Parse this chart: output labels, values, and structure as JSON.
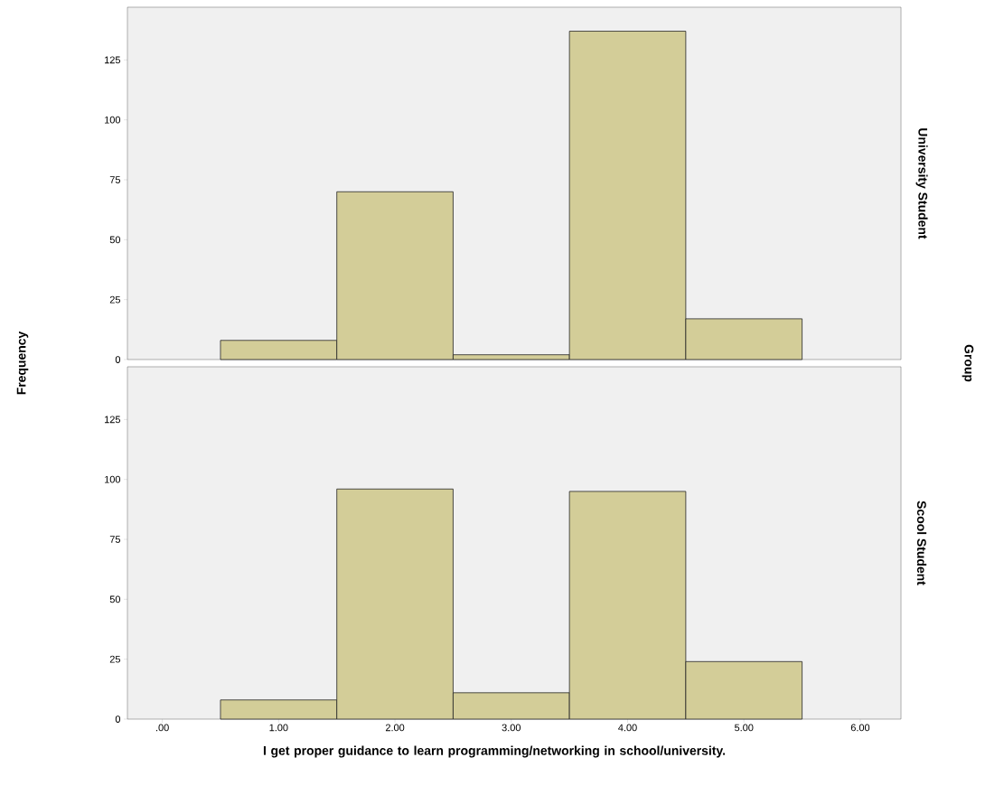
{
  "chart_data": [
    {
      "type": "histogram",
      "ylabel": "Frequency",
      "y2label": "University Student",
      "annotations": [
        "Group"
      ],
      "bins": [
        0.5,
        1.5,
        2.5,
        3.5,
        4.5,
        5.5
      ],
      "values": [
        8,
        70,
        2,
        137,
        17
      ],
      "color": "#d3cd98",
      "xlim": [
        -0.3,
        6.35
      ],
      "ylim": [
        0,
        147
      ],
      "yticks": [
        0,
        25,
        50,
        75,
        100,
        125
      ],
      "tick_labels": "y",
      "grid": false
    },
    {
      "type": "histogram",
      "xlabel": "I get proper guidance to learn programming/networking in school/university.",
      "y2label": "Scool Student",
      "bins": [
        0.5,
        1.5,
        2.5,
        3.5,
        4.5,
        5.5
      ],
      "values": [
        8,
        96,
        11,
        95,
        24
      ],
      "color": "#d3cd98",
      "xlim": [
        -0.3,
        6.35
      ],
      "xticks": [
        {
          "value": 0,
          "label": ".00"
        },
        {
          "value": 1,
          "label": "1.00"
        },
        {
          "value": 2,
          "label": "2.00"
        },
        {
          "value": 3,
          "label": "3.00"
        },
        {
          "value": 4,
          "label": "4.00"
        },
        {
          "value": 5,
          "label": "5.00"
        },
        {
          "value": 6,
          "label": "6.00"
        }
      ],
      "ylim": [
        0,
        147
      ],
      "yticks": [
        0,
        25,
        50,
        75,
        100,
        125
      ],
      "grid": false
    }
  ]
}
